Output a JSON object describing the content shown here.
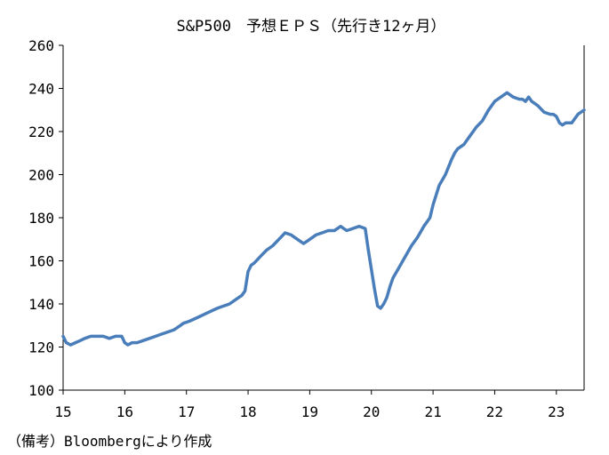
{
  "chart_data": {
    "type": "line",
    "title": "S&P500　予想ＥＰＳ（先行き12ヶ月）",
    "source_note": "（備考）Bloombergにより作成",
    "xlabel": "",
    "ylabel": "",
    "x_ticks": [
      "15",
      "16",
      "17",
      "18",
      "19",
      "20",
      "21",
      "22",
      "23"
    ],
    "y_ticks": [
      "100",
      "120",
      "140",
      "160",
      "180",
      "200",
      "220",
      "240",
      "260"
    ],
    "xlim": [
      15.0,
      23.45
    ],
    "ylim": [
      100,
      260
    ],
    "grid": false,
    "line_color": "#4a7ebb",
    "series": [
      {
        "x": [
          15.0,
          15.05,
          15.12,
          15.2,
          15.28,
          15.35,
          15.45,
          15.55,
          15.65,
          15.75,
          15.85,
          15.95,
          16.0,
          16.05,
          16.12,
          16.2,
          16.3,
          16.4,
          16.5,
          16.6,
          16.7,
          16.8,
          16.9,
          16.95,
          17.05,
          17.2,
          17.35,
          17.5,
          17.6,
          17.7,
          17.8,
          17.9,
          17.95,
          18.0,
          18.05,
          18.1,
          18.2,
          18.3,
          18.4,
          18.5,
          18.6,
          18.7,
          18.8,
          18.9,
          19.0,
          19.1,
          19.2,
          19.3,
          19.4,
          19.5,
          19.6,
          19.7,
          19.8,
          19.9,
          19.95,
          20.05,
          20.1,
          20.15,
          20.2,
          20.25,
          20.3,
          20.35,
          20.45,
          20.55,
          20.65,
          20.75,
          20.85,
          20.95,
          21.0,
          21.1,
          21.2,
          21.3,
          21.35,
          21.4,
          21.45,
          21.5,
          21.55,
          21.6,
          21.65,
          21.7,
          21.8,
          21.9,
          22.0,
          22.1,
          22.2,
          22.3,
          22.4,
          22.45,
          22.5,
          22.55,
          22.6,
          22.7,
          22.8,
          22.9,
          22.95,
          23.0,
          23.05,
          23.1,
          23.15,
          23.2,
          23.25,
          23.3,
          23.35,
          23.45
        ],
        "y": [
          125,
          122,
          121,
          122,
          123,
          124,
          125,
          125,
          125,
          124,
          125,
          125,
          122,
          121,
          122,
          122,
          123,
          124,
          125,
          126,
          127,
          128,
          130,
          131,
          132,
          134,
          136,
          138,
          139,
          140,
          142,
          144,
          146,
          155,
          158,
          159,
          162,
          165,
          167,
          170,
          173,
          172,
          170,
          168,
          170,
          172,
          173,
          174,
          174,
          176,
          174,
          175,
          176,
          175,
          165,
          147,
          139,
          138,
          140,
          143,
          148,
          152,
          157,
          162,
          167,
          171,
          176,
          180,
          186,
          195,
          200,
          207,
          210,
          212,
          213,
          214,
          216,
          218,
          220,
          222,
          225,
          230,
          234,
          236,
          238,
          236,
          235,
          235,
          234,
          236,
          234,
          232,
          229,
          228,
          228,
          227,
          224,
          223,
          224,
          224,
          224,
          226,
          228,
          230
        ]
      }
    ]
  }
}
